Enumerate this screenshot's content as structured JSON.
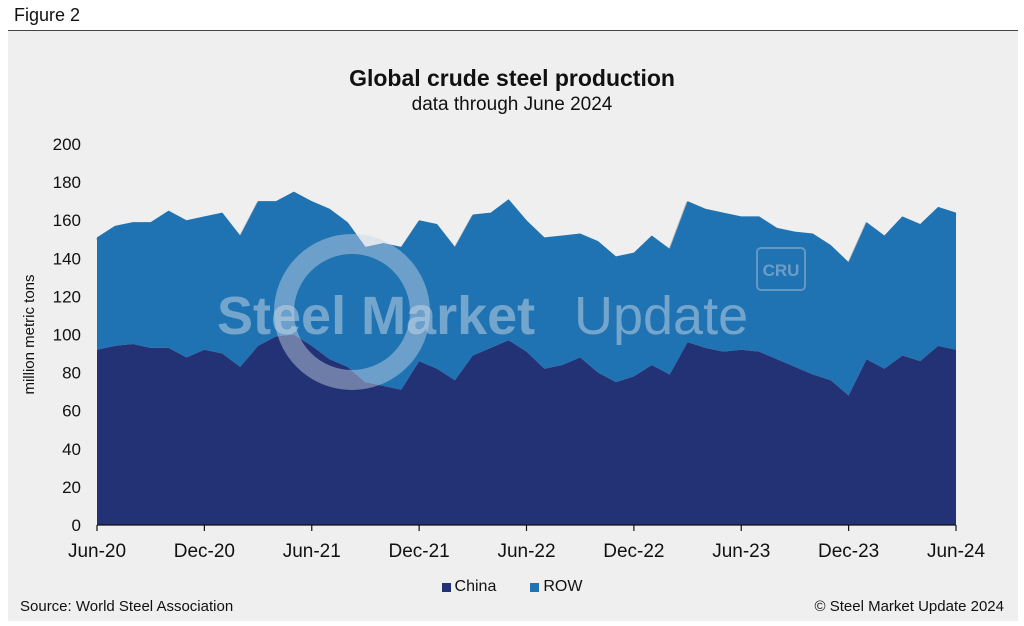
{
  "figure_label": "Figure 2",
  "source": "Source: World Steel Association",
  "copyright": "© Steel Market Update 2024",
  "watermark": {
    "brand_bold": "Steel Market",
    "brand_light": "Update",
    "badge": "CRU"
  },
  "colors": {
    "china": "#233274",
    "row": "#1f73b2",
    "background": "#efefef"
  },
  "chart_data": {
    "type": "area",
    "stacked": true,
    "title": "Global crude steel production",
    "subtitle": "data through June 2024",
    "ylabel": "million metric tons",
    "xlabel": "",
    "ylim": [
      0,
      200
    ],
    "yticks": [
      "0",
      "20",
      "40",
      "60",
      "80",
      "100",
      "120",
      "140",
      "160",
      "180",
      "200"
    ],
    "grid": false,
    "legend_position": "bottom-center",
    "xtick_labels": [
      "Jun-20",
      "Dec-20",
      "Jun-21",
      "Dec-21",
      "Jun-22",
      "Dec-22",
      "Jun-23",
      "Dec-23",
      "Jun-24"
    ],
    "xtick_positions": [
      0,
      6,
      12,
      18,
      24,
      30,
      36,
      42,
      48
    ],
    "x": [
      "Jun-20",
      "Jul-20",
      "Aug-20",
      "Sep-20",
      "Oct-20",
      "Nov-20",
      "Dec-20",
      "Jan-21",
      "Feb-21",
      "Mar-21",
      "Apr-21",
      "May-21",
      "Jun-21",
      "Jul-21",
      "Aug-21",
      "Sep-21",
      "Oct-21",
      "Nov-21",
      "Dec-21",
      "Jan-22",
      "Feb-22",
      "Mar-22",
      "Apr-22",
      "May-22",
      "Jun-22",
      "Jul-22",
      "Aug-22",
      "Sep-22",
      "Oct-22",
      "Nov-22",
      "Dec-22",
      "Jan-23",
      "Feb-23",
      "Mar-23",
      "Apr-23",
      "May-23",
      "Jun-23",
      "Jul-23",
      "Aug-23",
      "Sep-23",
      "Oct-23",
      "Nov-23",
      "Dec-23",
      "Jan-24",
      "Feb-24",
      "Mar-24",
      "Apr-24",
      "May-24",
      "Jun-24"
    ],
    "series": [
      {
        "name": "China",
        "values": [
          92,
          94,
          95,
          93,
          93,
          88,
          92,
          90,
          83,
          94,
          99,
          100,
          94,
          87,
          83,
          75,
          73,
          71,
          86,
          82,
          76,
          89,
          93,
          97,
          91,
          82,
          84,
          88,
          80,
          75,
          78,
          84,
          79,
          96,
          93,
          91,
          92,
          91,
          87,
          83,
          79,
          76,
          68,
          87,
          82,
          89,
          86,
          94,
          92
        ]
      },
      {
        "name": "ROW",
        "values": [
          59,
          63,
          64,
          66,
          72,
          72,
          70,
          74,
          69,
          76,
          71,
          75,
          76,
          79,
          76,
          71,
          75,
          75,
          74,
          76,
          70,
          74,
          71,
          74,
          69,
          69,
          68,
          65,
          69,
          66,
          65,
          68,
          66,
          74,
          73,
          73,
          70,
          71,
          69,
          71,
          74,
          71,
          70,
          72,
          70,
          73,
          72,
          73,
          72
        ]
      }
    ]
  }
}
